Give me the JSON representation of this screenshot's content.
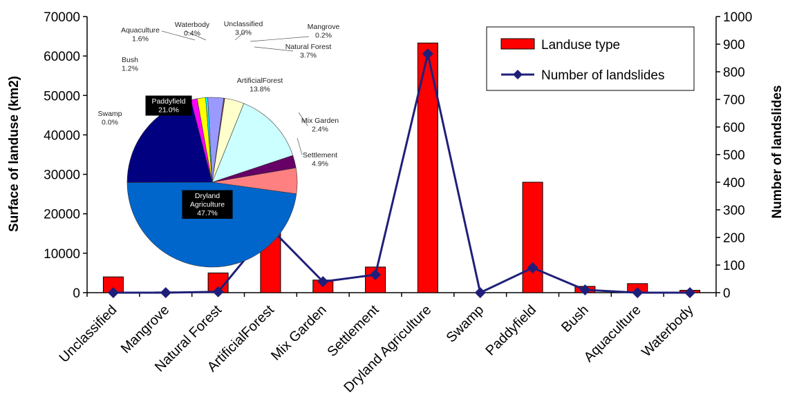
{
  "chart_data": [
    {
      "type": "bar",
      "categories": [
        "Unclassified",
        "Mangrove",
        "Natural Forest",
        "ArtificialForest",
        "Mix Garden",
        "Settlement",
        "Dryland Agriculture",
        "Swamp",
        "Paddyfield",
        "Bush",
        "Aquaculture",
        "Waterbody"
      ],
      "series": [
        {
          "name": "Landuse type",
          "type": "bar",
          "axis": "left",
          "color": "#ff0000",
          "values": [
            4000,
            200,
            5000,
            18300,
            3200,
            6500,
            63300,
            0,
            28000,
            1600,
            2300,
            600
          ]
        },
        {
          "name": "Number of landslides",
          "type": "line",
          "axis": "right",
          "color": "#1f1f7a",
          "marker": "diamond",
          "values": [
            0,
            0,
            3,
            233,
            40,
            65,
            865,
            0,
            90,
            10,
            0,
            0
          ]
        }
      ],
      "ylabel": "Surface of landuse (km2)",
      "ylim": [
        0,
        70000
      ],
      "yticks": [
        "0",
        "10000",
        "20000",
        "30000",
        "40000",
        "50000",
        "60000",
        "70000"
      ],
      "y2label": "Number of landslides",
      "y2lim": [
        0,
        1000
      ],
      "y2ticks": [
        "0",
        "100",
        "200",
        "300",
        "400",
        "500",
        "600",
        "700",
        "800",
        "900",
        "1000"
      ],
      "legend_position": "top-right",
      "grid": false
    },
    {
      "type": "pie",
      "slices": [
        {
          "name": "Unclassified",
          "value": 3.0,
          "label": [
            "Unclassified",
            "3.0%"
          ],
          "color": "#9999ff"
        },
        {
          "name": "Mangrove",
          "value": 0.2,
          "label": [
            "Mangrove",
            "0.2%"
          ],
          "color": "#993366"
        },
        {
          "name": "Natural Forest",
          "value": 3.7,
          "label": [
            "Natural Forest",
            "3.7%"
          ],
          "color": "#ffffcc"
        },
        {
          "name": "ArtificialForest",
          "value": 13.8,
          "label": [
            "ArtificialForest",
            "13.8%"
          ],
          "color": "#ccffff"
        },
        {
          "name": "Mix Garden",
          "value": 2.4,
          "label": [
            "Mix Garden",
            "2.4%"
          ],
          "color": "#660066"
        },
        {
          "name": "Settlement",
          "value": 4.9,
          "label": [
            "Settlement",
            "4.9%"
          ],
          "color": "#ff8080"
        },
        {
          "name": "Dryland Agriculture",
          "value": 47.7,
          "label": [
            "Dryland",
            "Agriculture",
            "47.7%"
          ],
          "color": "#0066cc"
        },
        {
          "name": "Swamp",
          "value": 0.0,
          "label": [
            "Swamp",
            "0.0%"
          ],
          "color": "#c0c0c0"
        },
        {
          "name": "Paddyfield",
          "value": 21.0,
          "label": [
            "Paddyfield",
            "21.0%"
          ],
          "color": "#000080"
        },
        {
          "name": "Bush",
          "value": 1.2,
          "label": [
            "Bush",
            "1.2%"
          ],
          "color": "#ff00ff"
        },
        {
          "name": "Aquaculture",
          "value": 1.6,
          "label": [
            "Aquaculture",
            "1.6%"
          ],
          "color": "#ffff00"
        },
        {
          "name": "Waterbody",
          "value": 0.4,
          "label": [
            "Waterbody",
            "0.4%"
          ],
          "color": "#00ffff"
        }
      ]
    }
  ]
}
